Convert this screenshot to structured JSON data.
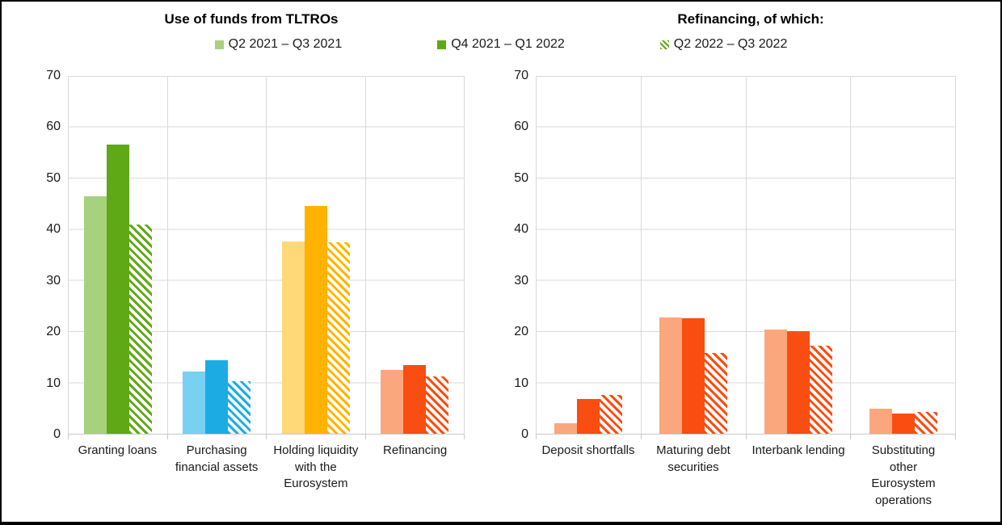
{
  "titles": {
    "left": "Use of funds from TLTROs",
    "right": "Refinancing, of which:"
  },
  "legend": {
    "position": "top",
    "items": [
      {
        "label": "Q2 2021 – Q3 2021",
        "style": "tint",
        "color": "#A8D17E"
      },
      {
        "label": "Q4 2021 – Q1 2022",
        "style": "solid",
        "color": "#5FA816"
      },
      {
        "label": "Q2 2022 – Q3 2022",
        "style": "hatch",
        "color": "#5FA816"
      }
    ]
  },
  "axis": {
    "ylim": [
      0,
      70
    ],
    "tick_step": 10,
    "ticks": [
      0,
      10,
      20,
      30,
      40,
      50,
      60,
      70
    ],
    "grid": true
  },
  "chart_data": [
    {
      "type": "bar",
      "title": "Use of funds from TLTROs",
      "ylim": [
        0,
        70
      ],
      "xlabel": "",
      "ylabel": "",
      "categories": [
        {
          "name": "Granting loans",
          "lines": [
            "Granting loans"
          ],
          "color_tint": "#A8D17E",
          "color_solid": "#5FA816"
        },
        {
          "name": "Purchasing financial assets",
          "lines": [
            "Purchasing",
            "financial assets"
          ],
          "color_tint": "#76D1F2",
          "color_solid": "#1CACE3"
        },
        {
          "name": "Holding liquidity with the Eurosystem",
          "lines": [
            "Holding liquidity",
            "with the",
            "Eurosystem"
          ],
          "color_tint": "#FFD878",
          "color_solid": "#FFB300"
        },
        {
          "name": "Refinancing",
          "lines": [
            "Refinancing"
          ],
          "color_tint": "#FBA77E",
          "color_solid": "#FA4D12"
        }
      ],
      "series": [
        {
          "name": "Q2 2021 – Q3 2021",
          "style": "tint",
          "values": [
            46.4,
            12.2,
            37.5,
            12.5
          ]
        },
        {
          "name": "Q4 2021 – Q1 2022",
          "style": "solid",
          "values": [
            56.5,
            14.4,
            44.4,
            13.4
          ]
        },
        {
          "name": "Q2 2022 – Q3 2022",
          "style": "hatch",
          "values": [
            40.8,
            10.3,
            37.4,
            11.2
          ]
        }
      ]
    },
    {
      "type": "bar",
      "title": "Refinancing, of which:",
      "ylim": [
        0,
        70
      ],
      "xlabel": "",
      "ylabel": "",
      "categories": [
        {
          "name": "Deposit shortfalls",
          "lines": [
            "Deposit shortfalls"
          ],
          "color_tint": "#FBA77E",
          "color_solid": "#FA4D12"
        },
        {
          "name": "Maturing debt securities",
          "lines": [
            "Maturing debt",
            "securities"
          ],
          "color_tint": "#FBA77E",
          "color_solid": "#FA4D12"
        },
        {
          "name": "Interbank lending",
          "lines": [
            "Interbank lending"
          ],
          "color_tint": "#FBA77E",
          "color_solid": "#FA4D12"
        },
        {
          "name": "Substituting other Eurosystem operations",
          "lines": [
            "Substituting",
            "other",
            "Eurosystem",
            "operations"
          ],
          "color_tint": "#FBA77E",
          "color_solid": "#FA4D12"
        }
      ],
      "series": [
        {
          "name": "Q2 2021 – Q3 2021",
          "style": "tint",
          "values": [
            2.1,
            22.7,
            20.3,
            4.9
          ]
        },
        {
          "name": "Q4 2021 – Q1 2022",
          "style": "solid",
          "values": [
            6.8,
            22.5,
            20.0,
            4.0
          ]
        },
        {
          "name": "Q2 2022 – Q3 2022",
          "style": "hatch",
          "values": [
            7.5,
            15.7,
            17.2,
            4.2
          ]
        }
      ]
    }
  ],
  "style": {
    "gridline_color": "#d9d9d9",
    "axis_color": "#c8c8c8",
    "hatch_background": "#ffffff"
  }
}
